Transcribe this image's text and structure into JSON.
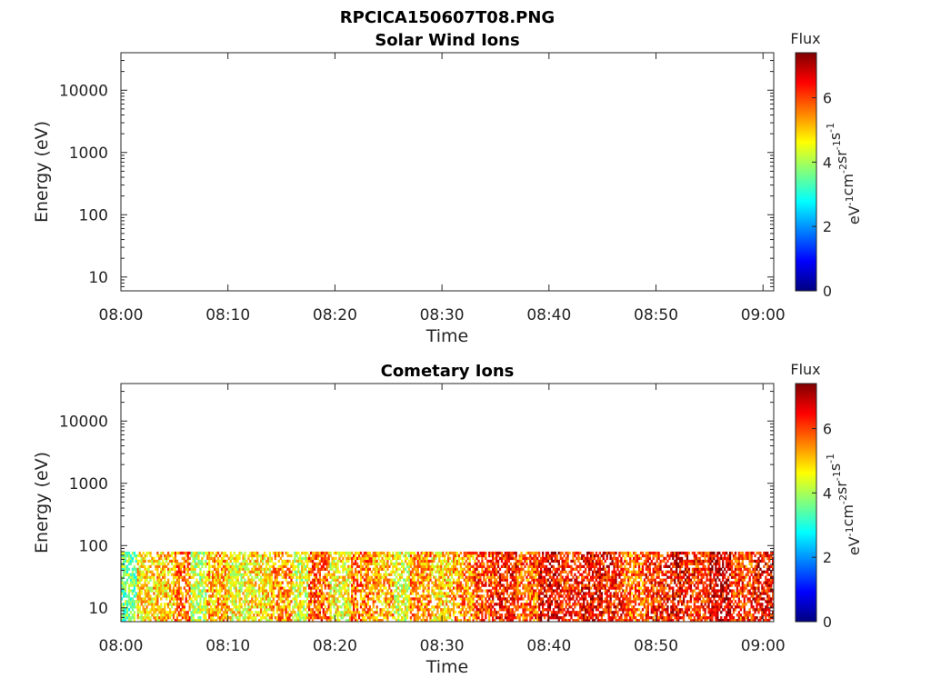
{
  "figure_title": "RPCICA150607T08.PNG",
  "colors": {
    "axis": "#262626",
    "colormap": [
      "#00007f",
      "#0000ff",
      "#007fff",
      "#00ffff",
      "#7fff7f",
      "#ffff00",
      "#ff7f00",
      "#ff0000",
      "#7f0000"
    ]
  },
  "chart_data": [
    {
      "type": "heatmap",
      "title": "Solar Wind Ions",
      "xlabel": "Time",
      "ylabel": "Energy (eV)",
      "x_tick_labels": [
        "08:00",
        "08:10",
        "08:20",
        "08:30",
        "08:40",
        "08:50",
        "09:00"
      ],
      "y_tick_labels": [
        "10",
        "100",
        "1000",
        "10000"
      ],
      "y_scale": "log",
      "ylim": [
        6,
        40000
      ],
      "xlim_minutes": [
        0,
        61
      ],
      "colorbar": {
        "title": "Flux",
        "unit_base": [
          "eV",
          "cm",
          "sr",
          "s"
        ],
        "unit_exp": [
          "-1",
          "-2",
          "-1",
          "-1"
        ],
        "ticks": [
          "0",
          "2",
          "4",
          "6"
        ],
        "range": [
          0,
          7.4
        ]
      },
      "blocks": []
    },
    {
      "type": "heatmap",
      "title": "Cometary Ions",
      "xlabel": "Time",
      "ylabel": "Energy (eV)",
      "x_tick_labels": [
        "08:00",
        "08:10",
        "08:20",
        "08:30",
        "08:40",
        "08:50",
        "09:00"
      ],
      "y_tick_labels": [
        "10",
        "100",
        "1000",
        "10000"
      ],
      "y_scale": "log",
      "ylim": [
        6,
        40000
      ],
      "xlim_minutes": [
        0,
        61
      ],
      "colorbar": {
        "title": "Flux",
        "unit_base": [
          "eV",
          "cm",
          "sr",
          "s"
        ],
        "unit_exp": [
          "-1",
          "-2",
          "-1",
          "-1"
        ],
        "ticks": [
          "0",
          "2",
          "4",
          "6"
        ],
        "range": [
          0,
          7.4
        ]
      },
      "energy_range_ev": [
        6,
        80
      ],
      "blocks": [
        {
          "t0": 0.0,
          "t1": 1.5,
          "flux": 3.6
        },
        {
          "t0": 1.5,
          "t1": 3.0,
          "flux": 4.8
        },
        {
          "t0": 3.0,
          "t1": 5.0,
          "flux": 5.0
        },
        {
          "t0": 5.0,
          "t1": 6.5,
          "flux": 5.6
        },
        {
          "t0": 6.5,
          "t1": 8.0,
          "flux": 4.2
        },
        {
          "t0": 8.0,
          "t1": 10.0,
          "flux": 5.2
        },
        {
          "t0": 10.0,
          "t1": 12.0,
          "flux": 4.6
        },
        {
          "t0": 12.0,
          "t1": 14.0,
          "flux": 4.8
        },
        {
          "t0": 14.0,
          "t1": 16.0,
          "flux": 5.4
        },
        {
          "t0": 16.0,
          "t1": 17.5,
          "flux": 4.4
        },
        {
          "t0": 17.5,
          "t1": 19.5,
          "flux": 5.8
        },
        {
          "t0": 19.5,
          "t1": 21.5,
          "flux": 4.6
        },
        {
          "t0": 21.5,
          "t1": 23.5,
          "flux": 5.6
        },
        {
          "t0": 23.5,
          "t1": 25.5,
          "flux": 5.2
        },
        {
          "t0": 25.5,
          "t1": 27.0,
          "flux": 4.4
        },
        {
          "t0": 27.0,
          "t1": 29.0,
          "flux": 5.4
        },
        {
          "t0": 29.0,
          "t1": 31.0,
          "flux": 4.9
        },
        {
          "t0": 31.0,
          "t1": 33.0,
          "flux": 5.4
        },
        {
          "t0": 33.0,
          "t1": 35.0,
          "flux": 6.0
        },
        {
          "t0": 35.0,
          "t1": 37.0,
          "flux": 6.3
        },
        {
          "t0": 37.0,
          "t1": 39.0,
          "flux": 5.8
        },
        {
          "t0": 39.0,
          "t1": 41.0,
          "flux": 6.6
        },
        {
          "t0": 41.0,
          "t1": 43.0,
          "flux": 6.2
        },
        {
          "t0": 43.0,
          "t1": 45.0,
          "flux": 6.5
        },
        {
          "t0": 45.0,
          "t1": 47.0,
          "flux": 6.3
        },
        {
          "t0": 47.0,
          "t1": 49.0,
          "flux": 5.7
        },
        {
          "t0": 49.0,
          "t1": 51.0,
          "flux": 6.2
        },
        {
          "t0": 51.0,
          "t1": 53.0,
          "flux": 6.5
        },
        {
          "t0": 53.0,
          "t1": 55.0,
          "flux": 6.2
        },
        {
          "t0": 55.0,
          "t1": 57.0,
          "flux": 6.8
        },
        {
          "t0": 57.0,
          "t1": 59.0,
          "flux": 6.0
        },
        {
          "t0": 59.0,
          "t1": 61.0,
          "flux": 6.5
        }
      ]
    }
  ]
}
